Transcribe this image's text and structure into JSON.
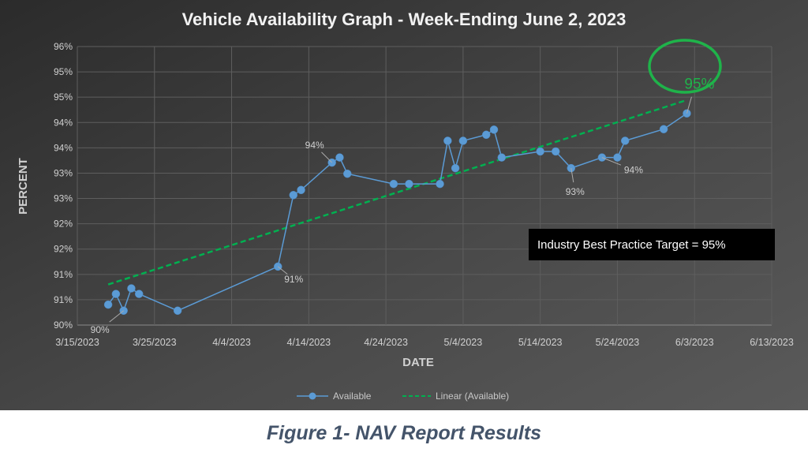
{
  "chart_data": {
    "type": "line",
    "title": "Vehicle Availability Graph - Week-Ending June 2, 2023",
    "xlabel": "DATE",
    "ylabel": "PERCENT",
    "x_ticks": [
      "3/15/2023",
      "3/25/2023",
      "4/4/2023",
      "4/14/2023",
      "4/24/2023",
      "5/4/2023",
      "5/14/2023",
      "5/24/2023",
      "6/3/2023",
      "6/13/2023"
    ],
    "xlim": [
      "2023-03-15",
      "2023-06-13"
    ],
    "y_ticks": [
      "90%",
      "91%",
      "91%",
      "92%",
      "92%",
      "93%",
      "93%",
      "94%",
      "94%",
      "95%",
      "95%",
      "96%"
    ],
    "ylim": [
      90,
      96
    ],
    "grid": true,
    "legend_position": "bottom",
    "series": [
      {
        "name": "Available",
        "color": "#5b9bd5",
        "x": [
          "2023-03-19",
          "2023-03-20",
          "2023-03-21",
          "2023-03-22",
          "2023-03-23",
          "2023-03-28",
          "2023-04-10",
          "2023-04-12",
          "2023-04-13",
          "2023-04-17",
          "2023-04-18",
          "2023-04-19",
          "2023-04-25",
          "2023-04-27",
          "2023-05-01",
          "2023-05-02",
          "2023-05-03",
          "2023-05-04",
          "2023-05-07",
          "2023-05-08",
          "2023-05-09",
          "2023-05-14",
          "2023-05-16",
          "2023-05-18",
          "2023-05-22",
          "2023-05-24",
          "2023-05-25",
          "2023-05-30",
          "2023-06-02"
        ],
        "values": [
          90.44,
          90.67,
          90.31,
          90.79,
          90.67,
          90.31,
          91.26,
          92.8,
          92.91,
          93.5,
          93.61,
          93.26,
          93.04,
          93.04,
          93.04,
          93.97,
          93.38,
          93.97,
          94.1,
          94.21,
          93.61,
          93.74,
          93.74,
          93.38,
          93.61,
          93.61,
          93.97,
          94.22,
          94.56
        ]
      }
    ],
    "trendline": {
      "name": "Linear (Available)",
      "type": "linear",
      "color": "#00b050"
    },
    "data_labels": [
      {
        "index": 2,
        "text": "90%"
      },
      {
        "index": 6,
        "text": "91%"
      },
      {
        "index": 9,
        "text": "94%"
      },
      {
        "index": 23,
        "text": "93%"
      },
      {
        "index": 24,
        "text": "94%"
      },
      {
        "index": 28,
        "text": "95%",
        "highlight": "#1fb34a"
      }
    ],
    "annotation": "Industry Best Practice Target = 95%"
  },
  "caption": "Figure 1- NAV Report Results"
}
